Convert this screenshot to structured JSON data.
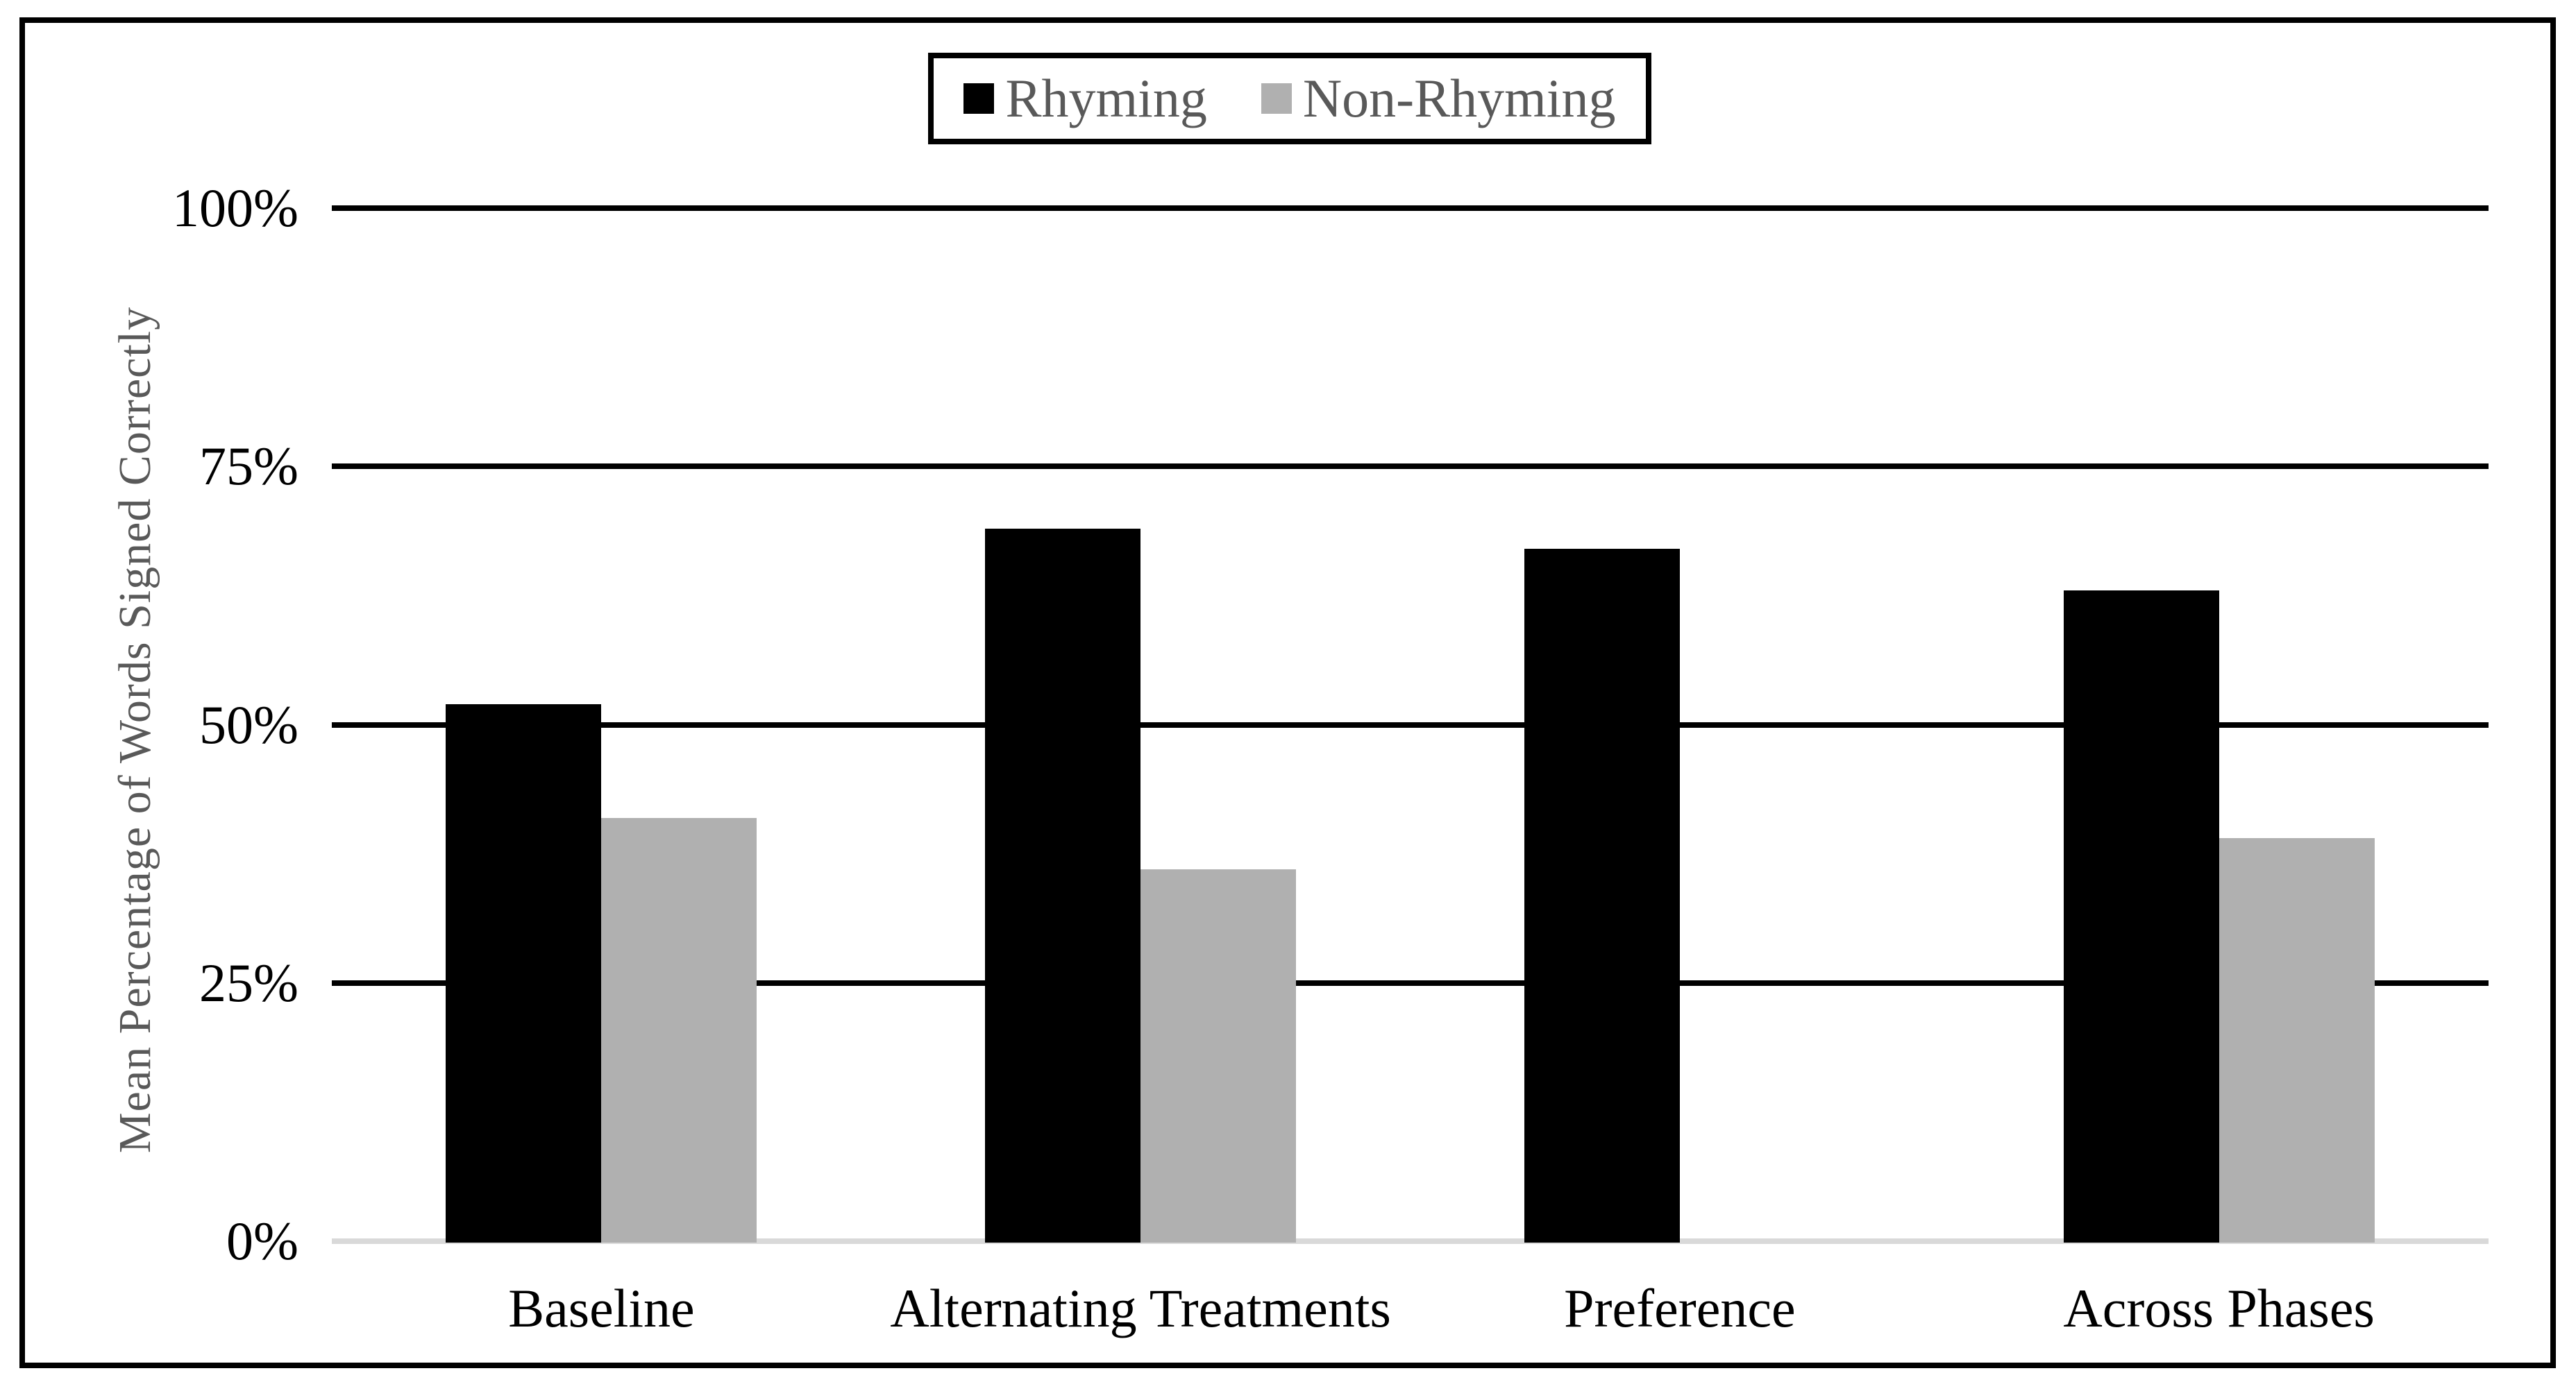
{
  "chart_data": {
    "type": "bar",
    "title": "",
    "categories": [
      "Baseline",
      "Alternating Treatments",
      "Preference",
      "Across Phases"
    ],
    "series": [
      {
        "name": "Rhyming",
        "color": "#000000",
        "values": [
          52,
          69,
          67,
          63
        ]
      },
      {
        "name": "Non-Rhyming",
        "color": "#B0B0B0",
        "values": [
          41,
          36,
          null,
          39
        ]
      }
    ],
    "xlabel": "",
    "ylabel": "Mean Percentage of Words Signed Correctly",
    "ylim": [
      0,
      100
    ],
    "yticks": [
      {
        "label": "0%",
        "value": 0
      },
      {
        "label": "25%",
        "value": 25
      },
      {
        "label": "50%",
        "value": 50
      },
      {
        "label": "75%",
        "value": 75
      },
      {
        "label": "100%",
        "value": 100
      }
    ],
    "grid": true,
    "grid_color": "#000000",
    "baseline_color": "#D9D9D9",
    "legend_position": "top-center",
    "tick_text_color": "#000000",
    "axis_title_text_color": "#595959",
    "legend_text_color": "#595959"
  }
}
